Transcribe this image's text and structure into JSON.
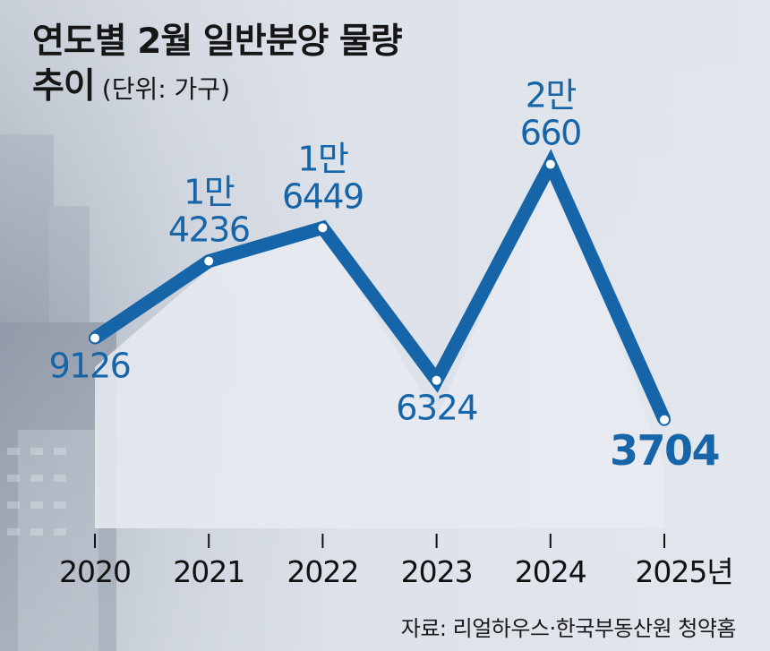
{
  "title": {
    "line1": "연도별 2월 일반분양 물량",
    "line2": "추이",
    "unit": "(단위: 가구)"
  },
  "source": "자료: 리얼하우스·한국부동산원 청약홈",
  "colors": {
    "line": "#1565a8",
    "label": "#1565a8",
    "axis": "#111111",
    "background": "#dde2ea"
  },
  "chart_data": {
    "type": "line",
    "categories": [
      "2020",
      "2021",
      "2022",
      "2023",
      "2024",
      "2025년"
    ],
    "values": [
      9126,
      14236,
      16449,
      6324,
      20660,
      3704
    ],
    "labels": [
      [
        "9126"
      ],
      [
        "1만",
        "4236"
      ],
      [
        "1만",
        "6449"
      ],
      [
        "6324"
      ],
      [
        "2만",
        "660"
      ],
      [
        "3704"
      ]
    ],
    "label_position": [
      "below",
      "above",
      "above",
      "below",
      "above",
      "below"
    ],
    "xlabel": "",
    "ylabel": "",
    "grid": false,
    "legend": "none"
  }
}
